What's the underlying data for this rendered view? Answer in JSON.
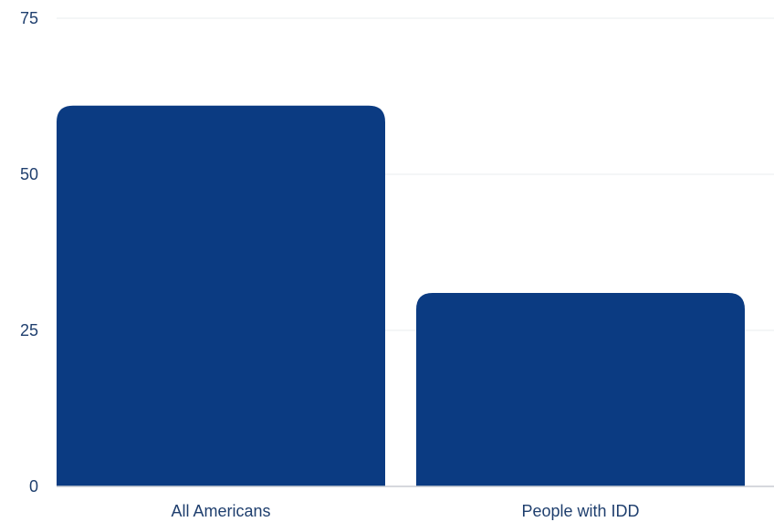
{
  "chart_data": {
    "type": "bar",
    "title": "",
    "xlabel": "",
    "ylabel": "",
    "categories": [
      "All Americans",
      "People with IDD"
    ],
    "values": [
      61,
      31
    ],
    "ylim": [
      0,
      75
    ],
    "yticks": [
      0,
      25,
      50,
      75
    ],
    "yticks_labels": [
      "0",
      "25",
      "50",
      "75"
    ],
    "grid": true,
    "legend": "none",
    "colors": {
      "bar": "#0b3b82",
      "grid": "#e9ecef",
      "axis": "#c8ccd2",
      "tick_text": "#1f3f6e",
      "category_text": "#1f3f6e"
    }
  }
}
